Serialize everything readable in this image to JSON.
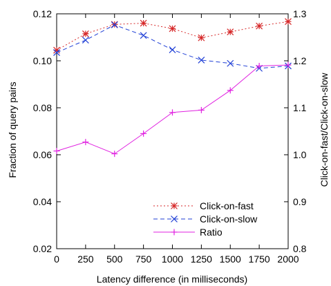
{
  "chart_data": {
    "type": "line",
    "title": "",
    "xlabel": "Latency difference (in milliseconds)",
    "ylabel": "Fraction of query pairs",
    "y2label": "Click-on-fast/Click-on-slow",
    "x": [
      0,
      250,
      500,
      750,
      1000,
      1250,
      1500,
      1750,
      2000
    ],
    "xticks": [
      "0",
      "250",
      "500",
      "750",
      "1000",
      "1250",
      "1500",
      "1750",
      "2000"
    ],
    "xlim": [
      0,
      2000
    ],
    "ylim": [
      0.02,
      0.12
    ],
    "yticks": [
      "0.02",
      "0.04",
      "0.06",
      "0.08",
      "0.10",
      "0.12"
    ],
    "y2lim": [
      0.8,
      1.3
    ],
    "y2ticks": [
      "0.8",
      "0.9",
      "1.0",
      "1.1",
      "1.2",
      "1.3"
    ],
    "grid": false,
    "legend_position": "bottom-right",
    "series": [
      {
        "name": "Click-on-fast",
        "axis": "left",
        "color": "#d62728",
        "line_style": "dotted",
        "marker": "asterisk",
        "values": [
          0.1045,
          0.1115,
          0.1155,
          0.116,
          0.1137,
          0.1098,
          0.1123,
          0.1148,
          0.1167
        ]
      },
      {
        "name": "Click-on-slow",
        "axis": "left",
        "color": "#1f3fd6",
        "line_style": "dashed",
        "marker": "x",
        "values": [
          0.1035,
          0.1088,
          0.1153,
          0.1108,
          0.1047,
          0.1003,
          0.0989,
          0.0968,
          0.0978
        ]
      },
      {
        "name": "Ratio",
        "axis": "right",
        "color": "#e020e0",
        "line_style": "solid",
        "marker": "plus",
        "values": [
          1.008,
          1.027,
          1.002,
          1.045,
          1.09,
          1.095,
          1.137,
          1.189,
          1.191
        ]
      }
    ]
  }
}
